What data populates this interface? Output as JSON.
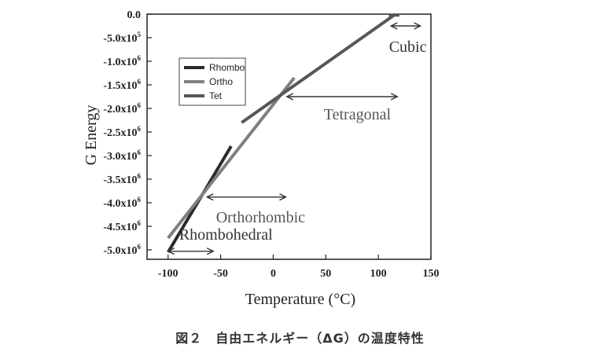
{
  "caption": "図２　自由エネルギー（ΔG）の温度特性",
  "chart_data": {
    "type": "line",
    "xlabel": "Temperature (°C)",
    "ylabel": "G Energy",
    "xlim": [
      -120,
      150
    ],
    "ylim": [
      -5200000,
      0
    ],
    "x_ticks": [
      {
        "value": -100,
        "label": "-100"
      },
      {
        "value": -50,
        "label": "-50"
      },
      {
        "value": 0,
        "label": "0"
      },
      {
        "value": 50,
        "label": "50"
      },
      {
        "value": 100,
        "label": "100"
      },
      {
        "value": 150,
        "label": "150"
      }
    ],
    "y_ticks": [
      {
        "value": 0,
        "label": "0.0"
      },
      {
        "value": -500000,
        "label": "-5.0x10",
        "exp": "5"
      },
      {
        "value": -1000000,
        "label": "-1.0x10",
        "exp": "6"
      },
      {
        "value": -1500000,
        "label": "-1.5x10",
        "exp": "6"
      },
      {
        "value": -2000000,
        "label": "-2.0x10",
        "exp": "6"
      },
      {
        "value": -2500000,
        "label": "-2.5x10",
        "exp": "6"
      },
      {
        "value": -3000000,
        "label": "-3.0x10",
        "exp": "6"
      },
      {
        "value": -3500000,
        "label": "-3.5x10",
        "exp": "6"
      },
      {
        "value": -4000000,
        "label": "-4.0x10",
        "exp": "6"
      },
      {
        "value": -4500000,
        "label": "-4.5x10",
        "exp": "6"
      },
      {
        "value": -5000000,
        "label": "-5.0x10",
        "exp": "6"
      }
    ],
    "series": [
      {
        "name": "Rhombo",
        "color": "#2b2b2b",
        "x": [
          -100,
          -40
        ],
        "y": [
          -5050000,
          -2800000
        ]
      },
      {
        "name": "Ortho",
        "color": "#7f7f7f",
        "x": [
          -100,
          20
        ],
        "y": [
          -4750000,
          -1350000
        ]
      },
      {
        "name": "Tet",
        "color": "#575757",
        "x": [
          -30,
          115
        ],
        "y": [
          -2300000,
          -20000
        ]
      },
      {
        "name": "",
        "color": "#575757",
        "x": [
          110,
          120
        ],
        "y": [
          -20000,
          -20000
        ]
      }
    ],
    "legend_position": "upper-left",
    "annotations": [
      {
        "text": "Cubic",
        "arrow_x": [
          112,
          140
        ],
        "arrow_y": -250000,
        "text_x": 128,
        "text_y": -800000,
        "dark": true
      },
      {
        "text": "Tetragonal",
        "arrow_x": [
          13,
          118
        ],
        "arrow_y": -1750000,
        "text_x": 80,
        "text_y": -2230000,
        "dark": false
      },
      {
        "text": "Orthorhombic",
        "arrow_x": [
          -63,
          12
        ],
        "arrow_y": -3880000,
        "text_x": -12,
        "text_y": -4420000,
        "dark": false
      },
      {
        "text": "Rhombohedral",
        "arrow_x": [
          -100,
          -57
        ],
        "arrow_y": -5030000,
        "text_x": -45,
        "text_y": -4780000,
        "dark": true
      }
    ]
  }
}
